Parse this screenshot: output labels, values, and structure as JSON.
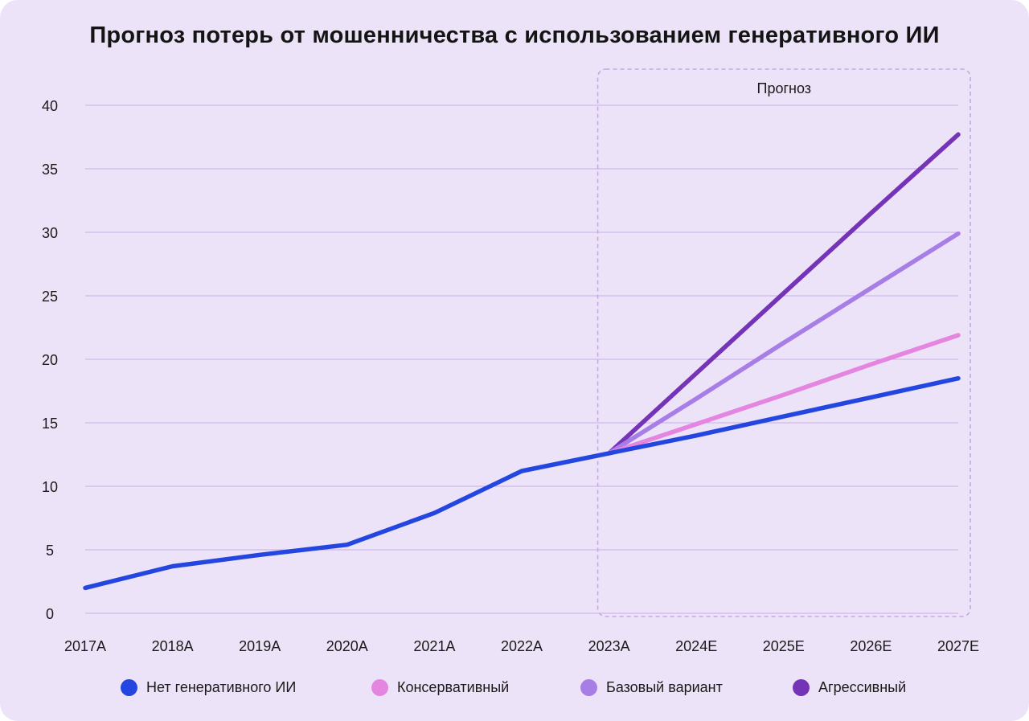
{
  "chart_data": {
    "type": "line",
    "title": "Прогноз потерь от мошенничества с использованием генеративного ИИ",
    "xlabel": "",
    "ylabel": "",
    "ylim": [
      0,
      40
    ],
    "yticks": [
      "0",
      "5",
      "10",
      "15",
      "20",
      "25",
      "30",
      "35",
      "40"
    ],
    "grid": true,
    "categories": [
      "2017A",
      "2018A",
      "2019A",
      "2020A",
      "2021A",
      "2022A",
      "2023A",
      "2024E",
      "2025E",
      "2026E",
      "2027E"
    ],
    "forecast_region": {
      "label": "Прогноз",
      "from": "2023A",
      "to": "2027E"
    },
    "legend_position": "bottom",
    "series": [
      {
        "name": "Нет генеративного ИИ",
        "color": "#2346e0",
        "values": [
          2.0,
          3.7,
          4.6,
          5.4,
          7.9,
          11.2,
          12.6,
          14.0,
          15.5,
          17.0,
          18.5
        ]
      },
      {
        "name": "Консервативный",
        "color": "#e485e0",
        "values": [
          null,
          null,
          null,
          null,
          null,
          null,
          12.6,
          14.9,
          17.2,
          19.6,
          21.9
        ]
      },
      {
        "name": "Базовый вариант",
        "color": "#a77de6",
        "values": [
          null,
          null,
          null,
          null,
          null,
          null,
          12.6,
          16.9,
          21.3,
          25.6,
          29.9
        ]
      },
      {
        "name": "Агрессивный",
        "color": "#7533b8",
        "values": [
          null,
          null,
          null,
          null,
          null,
          null,
          12.6,
          18.9,
          25.2,
          31.5,
          37.7
        ]
      }
    ]
  }
}
